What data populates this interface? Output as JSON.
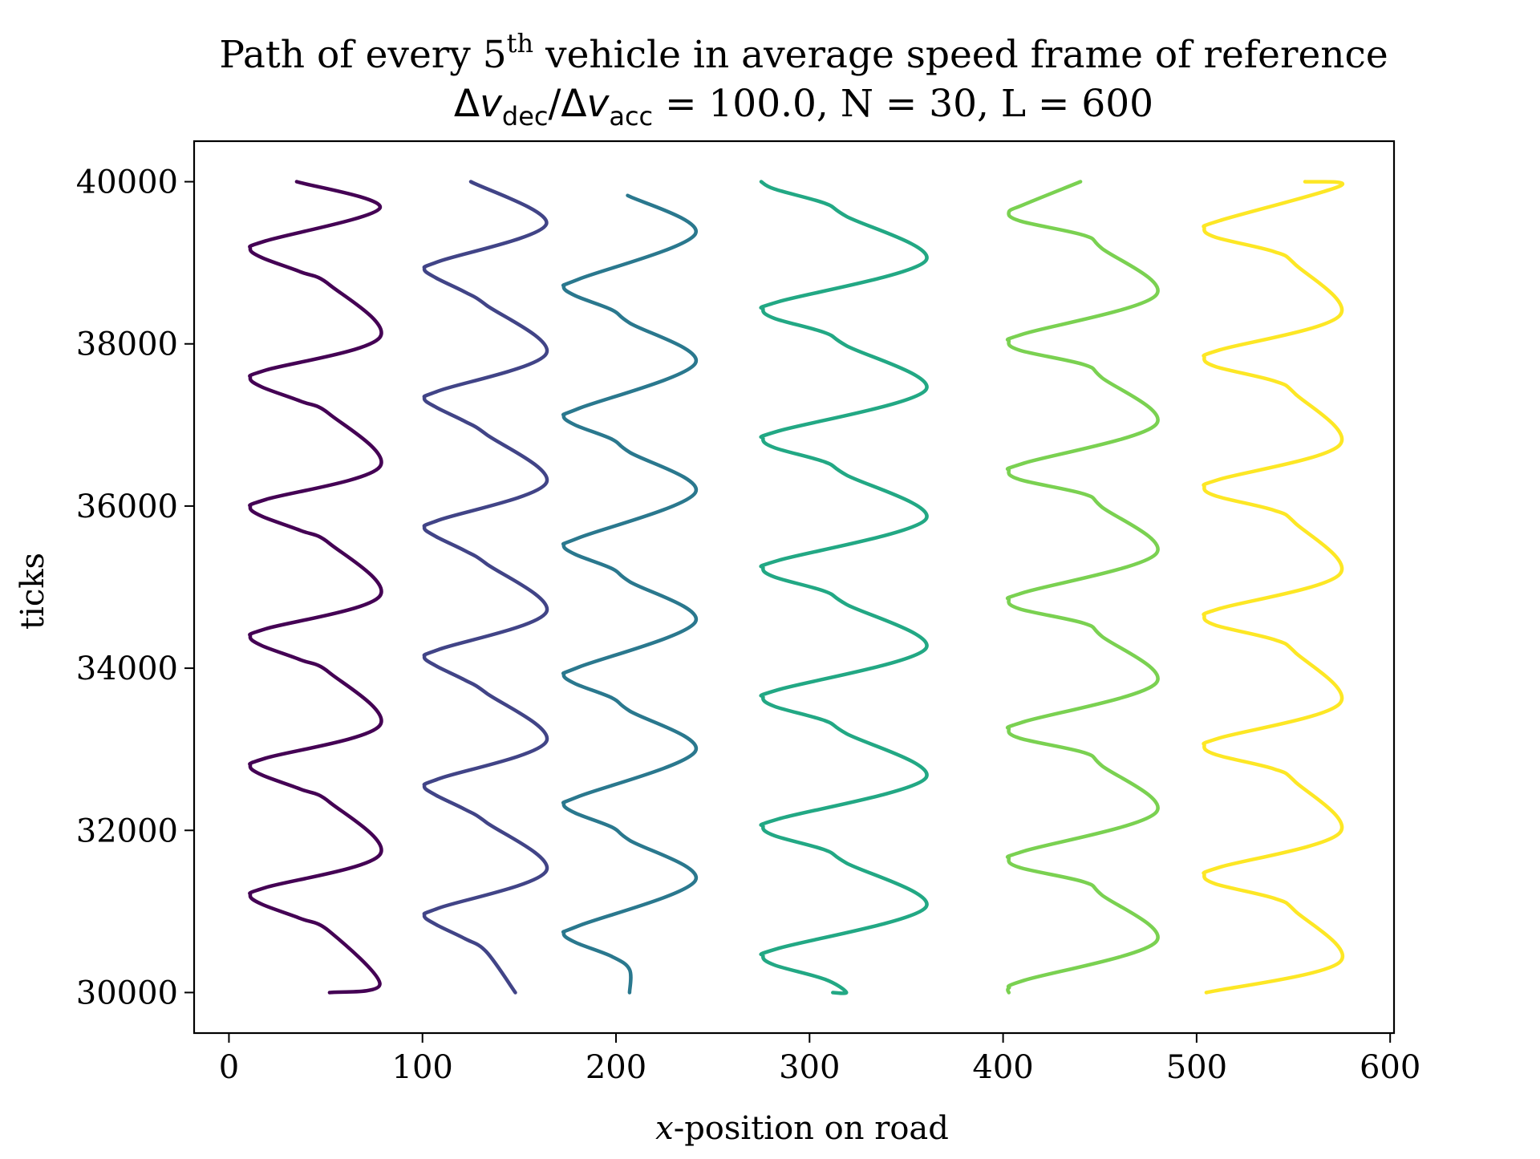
{
  "chart_data": {
    "type": "line",
    "title": {
      "line1_prefix": "Path of every 5",
      "line1_sup": "th",
      "line1_suffix": " vehicle in average speed frame of reference",
      "line2_suffix": " = 100.0, N = 30, L = 600"
    },
    "xlabel": {
      "italic": "x",
      "rest": "-position on road"
    },
    "ylabel": "ticks",
    "xlim": [
      -18,
      602
    ],
    "ylim": [
      29500,
      40500
    ],
    "xticks": [
      "0",
      "100",
      "200",
      "300",
      "400",
      "500",
      "600"
    ],
    "yticks": [
      "30000",
      "32000",
      "34000",
      "36000",
      "38000",
      "40000"
    ],
    "grid": false,
    "series": [
      {
        "color": "#440154",
        "start": [
          52,
          30000
        ],
        "end": [
          35,
          40000
        ],
        "min_x": 11,
        "max_x": 78,
        "kink_x": 52,
        "kink_in_x": 37,
        "turn_min_y": 31200,
        "peak_y": 31700,
        "period": 1595
      },
      {
        "color": "#414487",
        "start": [
          148,
          30000
        ],
        "end": [
          125,
          40000
        ],
        "min_x": 101,
        "max_x": 164,
        "kink_x": 133,
        "kink_in_x": 122,
        "turn_min_y": 30950,
        "peak_y": 31500,
        "period": 1595
      },
      {
        "color": "#2a788e",
        "start": [
          207,
          30000
        ],
        "end": [
          206,
          39830
        ],
        "min_x": 173,
        "max_x": 241,
        "kink_x": 207,
        "kink_in_x": 198,
        "turn_min_y": 30730,
        "peak_y": 31380,
        "period": 1595
      },
      {
        "color": "#22a884",
        "start": [
          312,
          30000
        ],
        "end": [
          275,
          40000
        ],
        "min_x": 276,
        "max_x": 360,
        "kink_x": 319,
        "kink_in_x": 308,
        "turn_min_y": 30450,
        "peak_y": 31050,
        "period": 1595
      },
      {
        "color": "#7ad151",
        "start": [
          403,
          30000
        ],
        "end": [
          440,
          40000
        ],
        "min_x": 403,
        "max_x": 479,
        "kink_x": 451,
        "kink_in_x": 442,
        "turn_min_y": 31650,
        "peak_y": 32220,
        "period": 1595
      },
      {
        "color": "#fde725",
        "start": [
          505,
          30000
        ],
        "end": [
          556,
          40000
        ],
        "min_x": 504,
        "max_x": 574,
        "kink_x": 551,
        "kink_in_x": 540,
        "turn_min_y": 31450,
        "peak_y": 31970,
        "period": 1595
      }
    ]
  }
}
